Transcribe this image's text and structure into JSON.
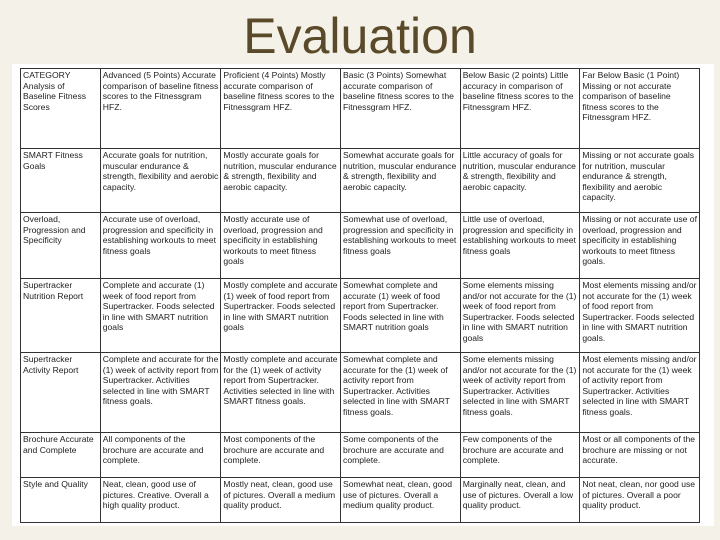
{
  "title": "Evaluation",
  "rubric": {
    "header": [
      "CATEGORY Analysis of Baseline Fitness Scores",
      "Advanced (5 Points) Accurate comparison of baseline fitness scores to the Fitnessgram HFZ.",
      "Proficient (4 Points) Mostly accurate comparison of baseline fitness scores to the Fitnessgram HFZ.",
      "Basic (3 Points) Somewhat accurate comparison of baseline fitness scores to the Fitnessgram HFZ.",
      "Below Basic (2 points) Little accuracy in comparison of baseline fitness scores to the Fitnessgram HFZ.",
      "Far Below Basic (1 Point) Missing or not accurate comparison of baseline fitness scores to the Fitnessgram HFZ."
    ],
    "rows": [
      [
        "SMART Fitness Goals",
        "Accurate goals for nutrition, muscular endurance & strength, flexibility and aerobic capacity.",
        "Mostly accurate goals for nutrition, muscular endurance & strength, flexibility and aerobic capacity.",
        "Somewhat accurate goals for nutrition, muscular endurance & strength, flexibility and aerobic capacity.",
        "Little accuracy of goals for nutrition, muscular endurance & strength, flexibility and aerobic capacity.",
        "Missing or not accurate goals for nutrition, muscular endurance & strength, flexibility and aerobic capacity."
      ],
      [
        "Overload, Progression and Specificity",
        "Accurate use of overload, progression and specificity in establishing workouts to meet fitness goals",
        "Mostly accurate use of overload, progression and specificity in establishing workouts to meet fitness goals",
        "Somewhat use of overload, progression and specificity in establishing workouts to meet fitness goals",
        "Little use of overload, progression and specificity in establishing workouts to meet fitness goals",
        "Missing or not accurate use of overload, progression and specificity in establishing workouts to meet fitness goals."
      ],
      [
        "Supertracker Nutrition Report",
        "Complete and accurate (1) week of food report from Supertracker. Foods selected in line with SMART nutrition goals",
        "Mostly complete and accurate (1) week of food report from Supertracker. Foods selected in line with SMART nutrition goals",
        "Somewhat complete and accurate (1) week of food report from Supertracker. Foods selected in line with SMART nutrition goals",
        "Some elements missing and/or not accurate for the (1) week of food report from Supertracker. Foods selected in line with SMART nutrition goals",
        "Most elements missing and/or not accurate for the (1) week of food report from Supertracker. Foods selected in line with SMART nutrition goals."
      ],
      [
        "Supertracker Activity Report",
        "Complete and accurate for the (1) week of activity report from Supertracker. Activities selected in line with SMART fitness goals.",
        "Mostly complete and accurate for the (1) week of activity report from Supertracker. Activities selected in line with SMART fitness goals.",
        "Somewhat complete and accurate for the (1) week of activity report from Supertracker. Activities selected in line with SMART fitness goals.",
        "Some elements missing and/or not accurate for the (1) week of activity report from Supertracker. Activities selected in line with SMART fitness goals.",
        "Most elements missing and/or not accurate for the (1) week of activity report from Supertracker. Activities selected in line with SMART fitness goals."
      ],
      [
        "Brochure Accurate and Complete",
        "All components of the brochure are accurate and complete.",
        "Most components of the brochure are accurate and complete.",
        "Some components of the brochure are accurate and complete.",
        "Few components of the brochure are accurate and complete.",
        "Most or all components of the brochure are missing or not accurate."
      ],
      [
        "Style and Quality",
        "Neat, clean, good use of pictures. Creative. Overall a high quality product.",
        "Mostly neat, clean, good use of pictures. Overall a medium quality product.",
        "Somewhat neat, clean, good use of pictures. Overall a medium quality product.",
        "Marginally neat, clean, and use of pictures. Overall a low quality product.",
        "Not neat, clean, nor good use of pictures. Overall a poor quality product."
      ]
    ]
  }
}
